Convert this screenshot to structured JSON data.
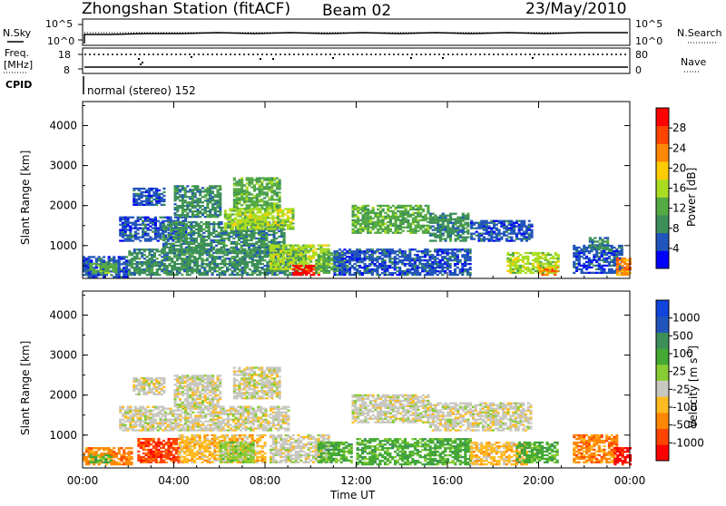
{
  "header": {
    "station": "Zhongshan Station (fitACF)",
    "beam": "Beam 02",
    "date": "23/May/2010"
  },
  "strips": {
    "nsky_label": "N.Sky",
    "nsky_ticks": [
      "10^5",
      "10^0"
    ],
    "nsearch_label": "N.Search",
    "nsearch_ticks": [
      "10^5",
      "10^0"
    ],
    "freq_label_line1": "Freq.",
    "freq_label_line2": "[MHz]",
    "freq_ticks": [
      "18",
      "8"
    ],
    "nave_label": "Nave",
    "nave_ticks": [
      "80",
      "0"
    ],
    "cpid_label": "CPID",
    "cpid_text": "normal (stereo) 152"
  },
  "colors": {
    "power": [
      "#0000ff",
      "#2255bb",
      "#3d8f5a",
      "#55aa44",
      "#aadd22",
      "#ffcc00",
      "#ff8800",
      "#ff4400",
      "#ff0000"
    ],
    "velocity": [
      "#ff0000",
      "#ff4400",
      "#ff8800",
      "#ffbb22",
      "#c8c8c0",
      "#88cc33",
      "#44aa33",
      "#3d8f5a",
      "#2255bb",
      "#1144dd"
    ]
  },
  "chart_data": [
    {
      "type": "heatmap",
      "name": "power",
      "ylabel": "Slant Range [km]",
      "yticks": [
        "4000",
        "3000",
        "2000",
        "1000"
      ],
      "ylim": [
        180,
        4600
      ],
      "xlim": [
        0,
        24
      ],
      "xticks": [
        "00:00",
        "04:00",
        "08:00",
        "12:00",
        "16:00",
        "20:00",
        "00:00"
      ],
      "colorbar_label": "Power [dB]",
      "colorbar_ticks": [
        "28",
        "24",
        "20",
        "16",
        "12",
        "8",
        "4"
      ],
      "colorbar_range": [
        0,
        32
      ],
      "regions": [
        {
          "t0": 0.0,
          "t1": 2.0,
          "r0": 200,
          "r1": 700,
          "level": 1
        },
        {
          "t0": 0.3,
          "t1": 1.5,
          "r0": 300,
          "r1": 550,
          "level": 3
        },
        {
          "t0": 1.6,
          "t1": 4.5,
          "r0": 1100,
          "r1": 1700,
          "level": 1
        },
        {
          "t0": 2.2,
          "t1": 3.6,
          "r0": 2000,
          "r1": 2450,
          "level": 1
        },
        {
          "t0": 3.5,
          "t1": 8.8,
          "r0": 800,
          "r1": 1600,
          "level": 2
        },
        {
          "t0": 4.0,
          "t1": 6.0,
          "r0": 1700,
          "r1": 2500,
          "level": 2
        },
        {
          "t0": 6.6,
          "t1": 8.6,
          "r0": 1900,
          "r1": 2700,
          "level": 3
        },
        {
          "t0": 6.2,
          "t1": 9.2,
          "r0": 1400,
          "r1": 1900,
          "level": 4
        },
        {
          "t0": 2.0,
          "t1": 9.8,
          "r0": 250,
          "r1": 900,
          "level": 2
        },
        {
          "t0": 8.2,
          "t1": 10.8,
          "r0": 400,
          "r1": 1000,
          "level": 4
        },
        {
          "t0": 9.2,
          "t1": 10.3,
          "r0": 250,
          "r1": 500,
          "level": 8
        },
        {
          "t0": 10.2,
          "t1": 11.6,
          "r0": 300,
          "r1": 800,
          "level": 3
        },
        {
          "t0": 11.8,
          "t1": 15.2,
          "r0": 1300,
          "r1": 2000,
          "level": 3
        },
        {
          "t0": 15.2,
          "t1": 16.9,
          "r0": 1100,
          "r1": 1800,
          "level": 2
        },
        {
          "t0": 17.0,
          "t1": 19.7,
          "r0": 1100,
          "r1": 1600,
          "level": 1
        },
        {
          "t0": 11.0,
          "t1": 17.0,
          "r0": 250,
          "r1": 900,
          "level": 1
        },
        {
          "t0": 18.6,
          "t1": 20.8,
          "r0": 300,
          "r1": 800,
          "level": 4
        },
        {
          "t0": 20.0,
          "t1": 20.8,
          "r0": 250,
          "r1": 450,
          "level": 6
        },
        {
          "t0": 21.5,
          "t1": 23.6,
          "r0": 300,
          "r1": 1000,
          "level": 1
        },
        {
          "t0": 22.2,
          "t1": 23.0,
          "r0": 900,
          "r1": 1200,
          "level": 2
        },
        {
          "t0": 23.4,
          "t1": 24.0,
          "r0": 250,
          "r1": 700,
          "level": 6
        }
      ]
    },
    {
      "type": "heatmap",
      "name": "velocity",
      "ylabel": "Slant Range [km]",
      "yticks": [
        "4000",
        "3000",
        "2000",
        "1000"
      ],
      "ylim": [
        180,
        4600
      ],
      "xlim": [
        0,
        24
      ],
      "xticks": [
        "00:00",
        "04:00",
        "08:00",
        "12:00",
        "16:00",
        "20:00",
        "00:00"
      ],
      "xlabel": "Time UT",
      "colorbar_label": "Velocity [m s",
      "colorbar_unit_exp": "-1",
      "colorbar_ticks": [
        "1000",
        "500",
        "100",
        "25",
        "-25",
        "-100",
        "-500",
        "-1000"
      ],
      "regions": [
        {
          "t0": 0.0,
          "t1": 2.2,
          "r0": 250,
          "r1": 700,
          "level": 2
        },
        {
          "t0": 0.3,
          "t1": 1.2,
          "r0": 300,
          "r1": 500,
          "level": 6
        },
        {
          "t0": 1.6,
          "t1": 9.0,
          "r0": 1100,
          "r1": 1700,
          "level": 4
        },
        {
          "t0": 2.2,
          "t1": 3.6,
          "r0": 2000,
          "r1": 2450,
          "level": 4
        },
        {
          "t0": 4.0,
          "t1": 6.0,
          "r0": 1700,
          "r1": 2500,
          "level": 4
        },
        {
          "t0": 6.6,
          "t1": 8.6,
          "r0": 1900,
          "r1": 2700,
          "level": 4
        },
        {
          "t0": 2.4,
          "t1": 4.2,
          "r0": 300,
          "r1": 900,
          "level": 1
        },
        {
          "t0": 4.2,
          "t1": 8.0,
          "r0": 300,
          "r1": 1000,
          "level": 3
        },
        {
          "t0": 6.0,
          "t1": 7.5,
          "r0": 300,
          "r1": 800,
          "level": 5
        },
        {
          "t0": 8.2,
          "t1": 10.8,
          "r0": 300,
          "r1": 1000,
          "level": 4
        },
        {
          "t0": 10.3,
          "t1": 11.8,
          "r0": 300,
          "r1": 800,
          "level": 6
        },
        {
          "t0": 11.8,
          "t1": 15.2,
          "r0": 1300,
          "r1": 2000,
          "level": 4
        },
        {
          "t0": 15.2,
          "t1": 19.7,
          "r0": 1100,
          "r1": 1800,
          "level": 4
        },
        {
          "t0": 12.0,
          "t1": 17.0,
          "r0": 250,
          "r1": 900,
          "level": 6
        },
        {
          "t0": 17.0,
          "t1": 19.5,
          "r0": 250,
          "r1": 800,
          "level": 3
        },
        {
          "t0": 19.0,
          "t1": 20.8,
          "r0": 300,
          "r1": 800,
          "level": 6
        },
        {
          "t0": 21.5,
          "t1": 23.4,
          "r0": 300,
          "r1": 1000,
          "level": 2
        },
        {
          "t0": 23.3,
          "t1": 24.0,
          "r0": 250,
          "r1": 700,
          "level": 0
        }
      ]
    }
  ]
}
